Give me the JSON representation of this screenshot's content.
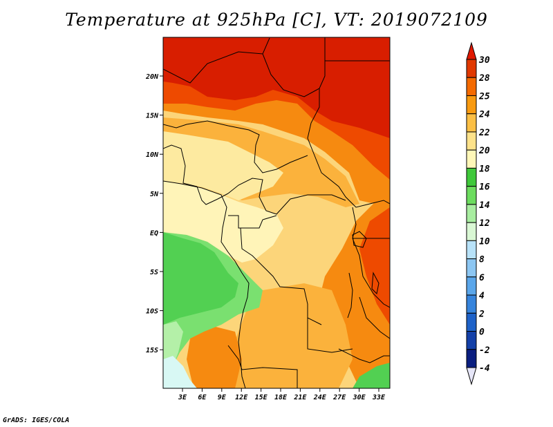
{
  "title": "Temperature at 925hPa [C], VT: 2019072109",
  "credit": "GrADS: IGES/COLA",
  "map": {
    "lon_ticks": [
      "3E",
      "6E",
      "9E",
      "12E",
      "15E",
      "18E",
      "21E",
      "24E",
      "27E",
      "30E",
      "33E"
    ],
    "lat_ticks": [
      "20N",
      "15N",
      "10N",
      "5N",
      "EQ",
      "5S",
      "10S",
      "15S"
    ]
  },
  "colorbar": {
    "levels": [
      {
        "label": "30",
        "color": "#c81e00"
      },
      {
        "label": "28",
        "color": "#e03800"
      },
      {
        "label": "25",
        "color": "#f46a00"
      },
      {
        "label": "24",
        "color": "#f89a10"
      },
      {
        "label": "22",
        "color": "#fbbf45"
      },
      {
        "label": "20",
        "color": "#fde28a"
      },
      {
        "label": "18",
        "color": "#fff7b8"
      },
      {
        "label": "16",
        "color": "#3fc83a"
      },
      {
        "label": "14",
        "color": "#6cdc5e"
      },
      {
        "label": "12",
        "color": "#a8eda0"
      },
      {
        "label": "10",
        "color": "#d9f7d4"
      },
      {
        "label": "8",
        "color": "#b8e2f8"
      },
      {
        "label": "6",
        "color": "#8cc6f2"
      },
      {
        "label": "4",
        "color": "#5aa6ea"
      },
      {
        "label": "2",
        "color": "#3684dc"
      },
      {
        "label": "0",
        "color": "#1e62c8"
      },
      {
        "label": "-2",
        "color": "#1440a8"
      },
      {
        "label": "-4",
        "color": "#0a1e80"
      }
    ],
    "top_color": "#e01800",
    "bottom_color": "#e6e6f8"
  },
  "colors": {
    "hot_dark": "#d81e00",
    "hot": "#ee4a00",
    "warm_orange": "#f68a10",
    "warm": "#fbb23c",
    "mild": "#fcd57a",
    "light": "#fdeaa0",
    "pale": "#fff4b8",
    "green": "#52d052",
    "green_light": "#7ae070",
    "green_pale": "#b4f0a8",
    "cyan_pale": "#d8f8f4",
    "border": "#000000"
  }
}
